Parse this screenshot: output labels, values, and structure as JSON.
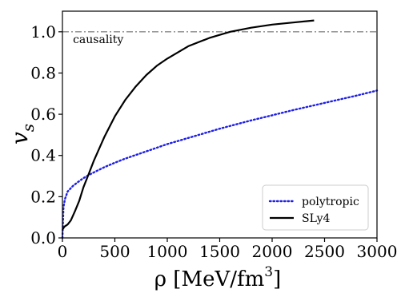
{
  "chart_data": {
    "type": "line",
    "xlabel": "ρ [MeV/fm³]",
    "xlabel_main": "ρ [MeV/fm",
    "xlabel_sup": "3",
    "xlabel_close": "]",
    "ylabel": "v",
    "ylabel_sub": "s",
    "xlim": [
      0,
      3000
    ],
    "ylim": [
      0,
      1.1
    ],
    "xticks": [
      0,
      500,
      1000,
      1500,
      2000,
      2500,
      3000
    ],
    "xtick_labels": [
      "0",
      "500",
      "1000",
      "1500",
      "2000",
      "2500",
      "3000"
    ],
    "yticks": [
      0,
      0.2,
      0.4,
      0.6,
      0.8,
      1.0
    ],
    "ytick_labels": [
      "0.0",
      "0.2",
      "0.4",
      "0.6",
      "0.8",
      "1.0"
    ],
    "grid": false,
    "legend_placement": "lower-right",
    "annotations": [
      {
        "text": "causality",
        "x": 100,
        "y": 0.965
      }
    ],
    "reference_line": {
      "y": 1.0,
      "style": "dash-dot",
      "color": "#888888"
    },
    "series": [
      {
        "name": "polytropic",
        "color": "#1f1fe6",
        "style": "dotted",
        "x": [
          0,
          10,
          25,
          50,
          100,
          150,
          200,
          250,
          300,
          400,
          500,
          600,
          800,
          1000,
          1200,
          1500,
          1800,
          2000,
          2200,
          2500,
          2800,
          3000
        ],
        "y": [
          0.0,
          0.15,
          0.19,
          0.225,
          0.252,
          0.272,
          0.29,
          0.305,
          0.318,
          0.343,
          0.365,
          0.385,
          0.42,
          0.455,
          0.485,
          0.53,
          0.57,
          0.595,
          0.62,
          0.655,
          0.69,
          0.715
        ]
      },
      {
        "name": "SLy4",
        "color": "#000000",
        "style": "solid",
        "x": [
          0,
          20,
          50,
          80,
          120,
          160,
          200,
          250,
          300,
          400,
          500,
          600,
          700,
          800,
          900,
          1000,
          1200,
          1400,
          1600,
          1800,
          2000,
          2200,
          2400
        ],
        "y": [
          0.04,
          0.055,
          0.065,
          0.085,
          0.13,
          0.18,
          0.245,
          0.31,
          0.375,
          0.49,
          0.59,
          0.67,
          0.735,
          0.79,
          0.835,
          0.87,
          0.93,
          0.97,
          1.0,
          1.02,
          1.035,
          1.045,
          1.055
        ]
      }
    ]
  }
}
